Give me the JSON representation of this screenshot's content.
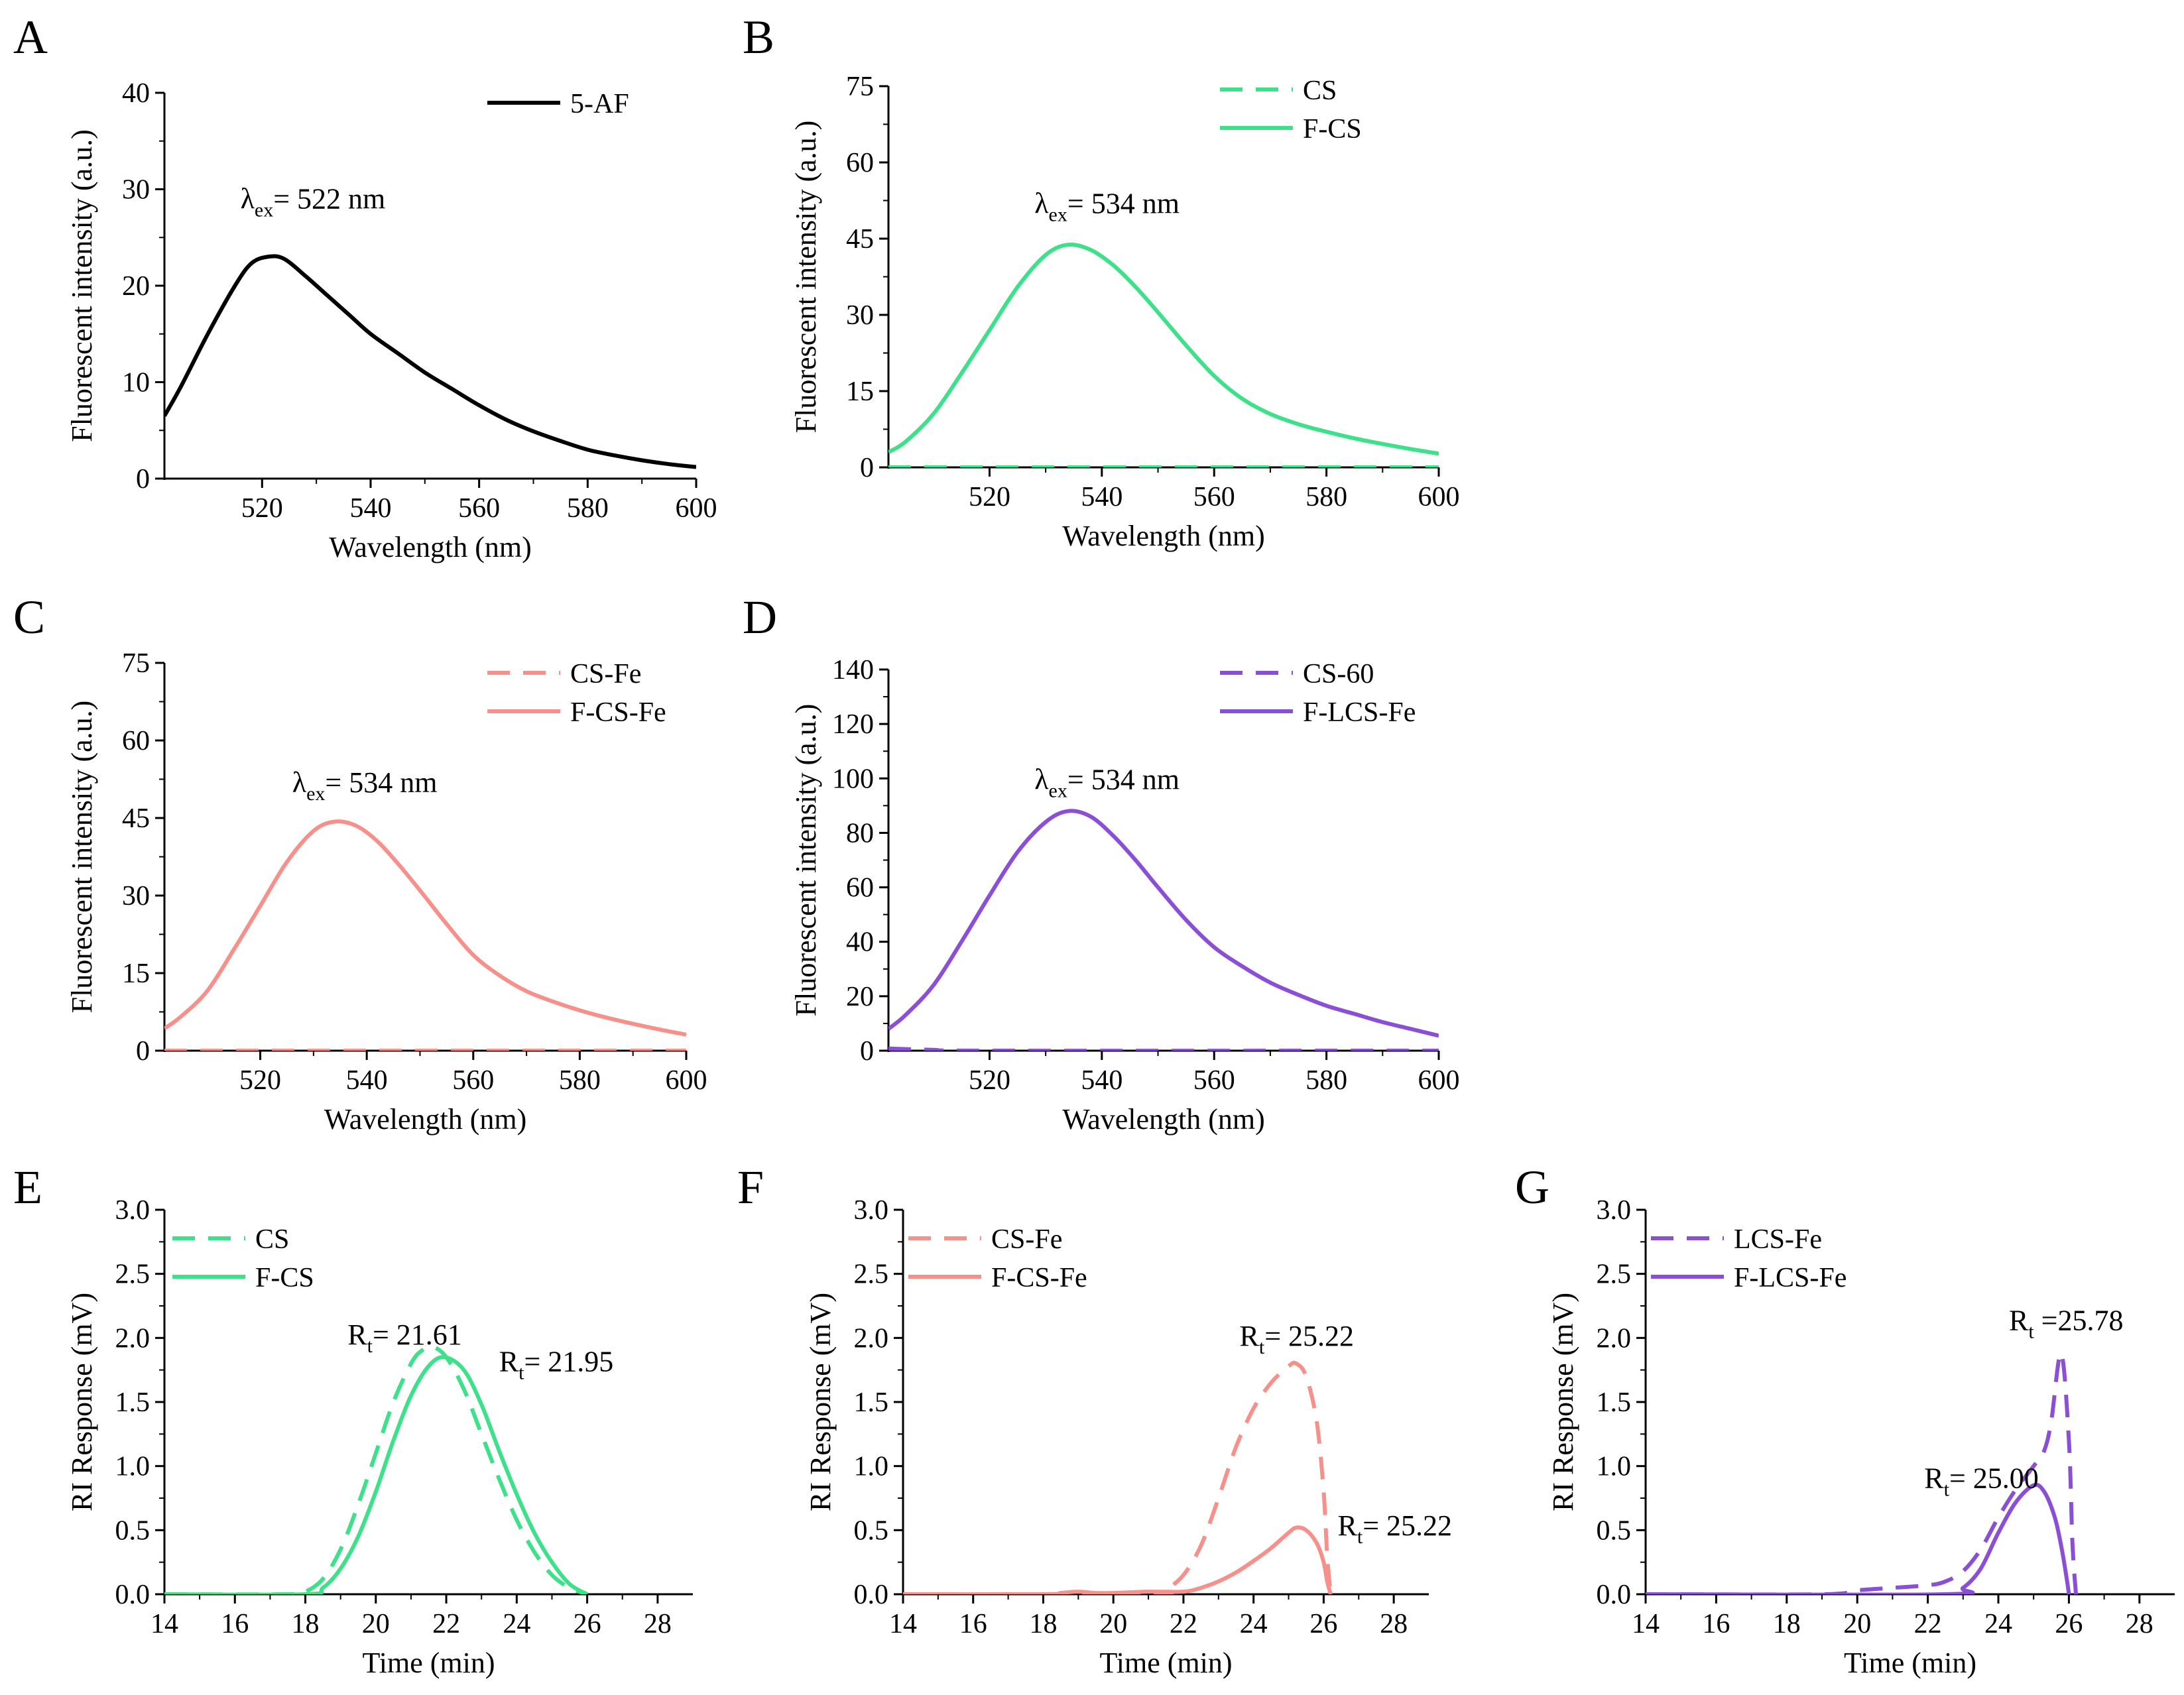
{
  "colors": {
    "A": "#000000",
    "B": "#3ee08a",
    "C": "#f7908a",
    "D": "#8b4fd6",
    "E": "#3ee08a",
    "F": "#f7908a",
    "G": "#8b4fd6"
  },
  "chart_data": [
    {
      "id": "A",
      "panel_label": "A",
      "type": "line",
      "xlabel": "Wavelength (nm)",
      "ylabel": "Fluorescent intensity (a.u.)",
      "xlim": [
        502,
        600
      ],
      "ylim": [
        0,
        40
      ],
      "xticks": [
        520,
        540,
        560,
        580,
        600
      ],
      "yticks": [
        0,
        10,
        20,
        30,
        40
      ],
      "series": [
        {
          "name": "5-AF",
          "style": "solid",
          "color": "#000000",
          "x": [
            502,
            505,
            510,
            515,
            518,
            521,
            524,
            528,
            532,
            536,
            540,
            545,
            550,
            555,
            560,
            565,
            570,
            575,
            580,
            585,
            590,
            595,
            600
          ],
          "y": [
            6.5,
            9.5,
            15.0,
            20.0,
            22.3,
            23.0,
            22.8,
            21.0,
            19.0,
            17.0,
            15.0,
            13.0,
            11.0,
            9.3,
            7.6,
            6.1,
            4.9,
            3.9,
            3.0,
            2.4,
            1.9,
            1.5,
            1.2
          ]
        }
      ],
      "annotations": [
        {
          "kind": "lambda",
          "sub": "ex",
          "text": "= 522 nm",
          "x": 516,
          "y": 28
        }
      ]
    },
    {
      "id": "B",
      "panel_label": "B",
      "type": "line",
      "xlabel": "Wavelength (nm)",
      "ylabel": "Fluorescent intensity (a.u.)",
      "xlim": [
        502,
        600
      ],
      "ylim": [
        0,
        75
      ],
      "xticks": [
        520,
        540,
        560,
        580,
        600
      ],
      "yticks": [
        0,
        15,
        30,
        45,
        60,
        75
      ],
      "series": [
        {
          "name": "CS",
          "style": "dashed",
          "color": "#3ee08a",
          "x": [
            502,
            600
          ],
          "y": [
            0,
            0
          ]
        },
        {
          "name": "F-CS",
          "style": "solid",
          "color": "#3ee08a",
          "x": [
            502,
            505,
            510,
            515,
            520,
            525,
            530,
            534,
            538,
            542,
            546,
            550,
            555,
            560,
            565,
            570,
            575,
            580,
            585,
            590,
            595,
            600
          ],
          "y": [
            3.0,
            5.0,
            10.5,
            18.5,
            27.0,
            35.5,
            41.8,
            43.8,
            42.8,
            39.8,
            35.5,
            30.5,
            24.0,
            18.0,
            13.5,
            10.5,
            8.5,
            7.0,
            5.7,
            4.6,
            3.6,
            2.7
          ]
        }
      ],
      "annotations": [
        {
          "kind": "lambda",
          "sub": "ex",
          "text": "= 534 nm",
          "x": 528,
          "y": 50
        }
      ]
    },
    {
      "id": "C",
      "panel_label": "C",
      "type": "line",
      "xlabel": "Wavelength (nm)",
      "ylabel": "Fluorescent intensity (a.u.)",
      "xlim": [
        502,
        600
      ],
      "ylim": [
        0,
        75
      ],
      "xticks": [
        520,
        540,
        560,
        580,
        600
      ],
      "yticks": [
        0,
        15,
        30,
        45,
        60,
        75
      ],
      "series": [
        {
          "name": "CS-Fe",
          "style": "dashed",
          "color": "#f7908a",
          "x": [
            502,
            600
          ],
          "y": [
            0,
            0
          ]
        },
        {
          "name": "F-CS-Fe",
          "style": "solid",
          "color": "#f7908a",
          "x": [
            502,
            505,
            510,
            515,
            520,
            525,
            530,
            534,
            538,
            542,
            546,
            550,
            555,
            560,
            565,
            570,
            575,
            580,
            585,
            590,
            595,
            600
          ],
          "y": [
            4.3,
            6.5,
            11.5,
            19.5,
            28.0,
            36.5,
            42.5,
            44.3,
            43.5,
            40.5,
            36.0,
            31.0,
            24.5,
            18.5,
            14.5,
            11.5,
            9.5,
            7.8,
            6.4,
            5.2,
            4.1,
            3.1
          ]
        }
      ],
      "annotations": [
        {
          "kind": "lambda",
          "sub": "ex",
          "text": "= 534 nm",
          "x": 526,
          "y": 50
        }
      ]
    },
    {
      "id": "D",
      "panel_label": "D",
      "type": "line",
      "xlabel": "Wavelength (nm)",
      "ylabel": "Fluorescent intensity (a.u.)",
      "xlim": [
        502,
        600
      ],
      "ylim": [
        0,
        140
      ],
      "xticks": [
        520,
        540,
        560,
        580,
        600
      ],
      "yticks": [
        0,
        20,
        40,
        60,
        80,
        100,
        120,
        140
      ],
      "series": [
        {
          "name": "CS-60",
          "style": "dashed",
          "color": "#8b4fd6",
          "x": [
            502,
            510,
            520,
            600
          ],
          "y": [
            0.8,
            0.3,
            0,
            0
          ]
        },
        {
          "name": "F-LCS-Fe",
          "style": "solid",
          "color": "#8b4fd6",
          "x": [
            502,
            505,
            510,
            515,
            520,
            525,
            530,
            534,
            538,
            542,
            546,
            550,
            555,
            560,
            565,
            570,
            575,
            580,
            585,
            590,
            595,
            600
          ],
          "y": [
            8,
            13,
            24,
            40,
            57,
            73,
            84,
            88,
            86,
            79,
            70,
            60,
            48,
            38,
            31,
            25,
            20.5,
            16.5,
            13.5,
            10.5,
            8,
            5.5
          ]
        }
      ],
      "annotations": [
        {
          "kind": "lambda",
          "sub": "ex",
          "text": "= 534 nm",
          "x": 528,
          "y": 96
        }
      ]
    },
    {
      "id": "E",
      "panel_label": "E",
      "type": "line",
      "xlabel": "Time (min)",
      "ylabel": "RI Response (mV)",
      "xlim": [
        14,
        29
      ],
      "ylim": [
        0,
        3.0
      ],
      "xticks": [
        14,
        16,
        18,
        20,
        22,
        24,
        26,
        28
      ],
      "yticks": [
        0.0,
        0.5,
        1.0,
        1.5,
        2.0,
        2.5,
        3.0
      ],
      "series": [
        {
          "name": "CS",
          "style": "dashed",
          "color": "#3ee08a",
          "x": [
            14,
            17.5,
            18.0,
            18.5,
            19.0,
            19.5,
            20.0,
            20.5,
            21.0,
            21.3,
            21.61,
            22.0,
            22.5,
            23.0,
            23.5,
            24.0,
            24.5,
            25.0,
            25.5,
            26.0
          ],
          "y": [
            0,
            0,
            0.02,
            0.12,
            0.35,
            0.7,
            1.1,
            1.5,
            1.8,
            1.9,
            1.93,
            1.85,
            1.6,
            1.25,
            0.9,
            0.58,
            0.33,
            0.15,
            0.05,
            0
          ]
        },
        {
          "name": "F-CS",
          "style": "solid",
          "color": "#3ee08a",
          "x": [
            14,
            18.0,
            18.5,
            19.0,
            19.5,
            20.0,
            20.5,
            21.0,
            21.5,
            21.95,
            22.5,
            23.0,
            23.5,
            24.0,
            24.5,
            25.0,
            25.5,
            26.0
          ],
          "y": [
            0,
            0,
            0.05,
            0.2,
            0.45,
            0.8,
            1.2,
            1.55,
            1.78,
            1.85,
            1.75,
            1.48,
            1.12,
            0.78,
            0.48,
            0.25,
            0.08,
            0
          ]
        }
      ],
      "annotations": [
        {
          "kind": "rt",
          "sub": "t",
          "text": "= 21.61",
          "x": 19.2,
          "y": 1.95
        },
        {
          "kind": "rt",
          "sub": "t",
          "text": "= 21.95",
          "x": 23.5,
          "y": 1.74
        }
      ]
    },
    {
      "id": "F",
      "panel_label": "F",
      "type": "line",
      "xlabel": "Time (min)",
      "ylabel": "RI Response (mV)",
      "xlim": [
        14,
        29
      ],
      "ylim": [
        0,
        3.0
      ],
      "xticks": [
        14,
        16,
        18,
        20,
        22,
        24,
        26,
        28
      ],
      "yticks": [
        0.0,
        0.5,
        1.0,
        1.5,
        2.0,
        2.5,
        3.0
      ],
      "series": [
        {
          "name": "CS-Fe",
          "style": "dashed",
          "color": "#f7908a",
          "x": [
            14,
            21.0,
            21.5,
            22.0,
            22.5,
            23.0,
            23.5,
            24.0,
            24.5,
            25.0,
            25.22,
            25.5,
            25.8,
            26.0,
            26.1,
            26.2
          ],
          "y": [
            0,
            0,
            0.04,
            0.15,
            0.38,
            0.75,
            1.15,
            1.45,
            1.65,
            1.78,
            1.8,
            1.7,
            1.35,
            0.8,
            0.3,
            0
          ]
        },
        {
          "name": "F-CS-Fe",
          "style": "solid",
          "color": "#f7908a",
          "x": [
            14,
            18.0,
            18.5,
            19.0,
            19.5,
            20.0,
            21.0,
            22.0,
            22.5,
            23.0,
            23.5,
            24.0,
            24.5,
            25.0,
            25.22,
            25.5,
            25.8,
            26.0,
            26.1,
            26.2
          ],
          "y": [
            0,
            0,
            0.01,
            0.02,
            0.01,
            0.01,
            0.02,
            0.02,
            0.05,
            0.1,
            0.17,
            0.26,
            0.36,
            0.48,
            0.52,
            0.5,
            0.4,
            0.25,
            0.1,
            0
          ]
        }
      ],
      "annotations": [
        {
          "kind": "rt",
          "sub": "t",
          "text": "= 25.22",
          "x": 23.6,
          "y": 1.94
        },
        {
          "kind": "rt",
          "sub": "t",
          "text": "= 25.22",
          "x": 26.4,
          "y": 0.46
        }
      ]
    },
    {
      "id": "G",
      "panel_label": "G",
      "type": "line",
      "xlabel": "Time (min)",
      "ylabel": "RI Response (mV)",
      "xlim": [
        14,
        29
      ],
      "ylim": [
        0,
        3.0
      ],
      "xticks": [
        14,
        16,
        18,
        20,
        22,
        24,
        26,
        28
      ],
      "yticks": [
        0.0,
        0.5,
        1.0,
        1.5,
        2.0,
        2.5,
        3.0
      ],
      "series": [
        {
          "name": "LCS-Fe",
          "style": "dashed",
          "color": "#8b4fd6",
          "x": [
            14,
            19.0,
            20.0,
            21.0,
            22.0,
            22.5,
            23.0,
            23.5,
            24.0,
            24.5,
            25.0,
            25.3,
            25.5,
            25.78,
            26.0,
            26.1,
            26.2
          ],
          "y": [
            0,
            0,
            0.03,
            0.05,
            0.07,
            0.1,
            0.18,
            0.35,
            0.6,
            0.82,
            1.0,
            1.12,
            1.35,
            1.88,
            1.2,
            0.4,
            0
          ]
        },
        {
          "name": "F-LCS-Fe",
          "style": "solid",
          "color": "#8b4fd6",
          "x": [
            14,
            22.5,
            23.0,
            23.5,
            24.0,
            24.5,
            25.0,
            25.3,
            25.6,
            25.8,
            25.95,
            26.0
          ],
          "y": [
            0,
            0,
            0.05,
            0.2,
            0.48,
            0.72,
            0.85,
            0.8,
            0.6,
            0.35,
            0.1,
            0
          ]
        }
      ],
      "annotations": [
        {
          "kind": "rt",
          "sub": "t",
          "text": " =25.78",
          "x": 24.3,
          "y": 2.06
        },
        {
          "kind": "rt",
          "sub": "t",
          "text": "= 25.00",
          "x": 21.9,
          "y": 0.83
        }
      ]
    }
  ]
}
